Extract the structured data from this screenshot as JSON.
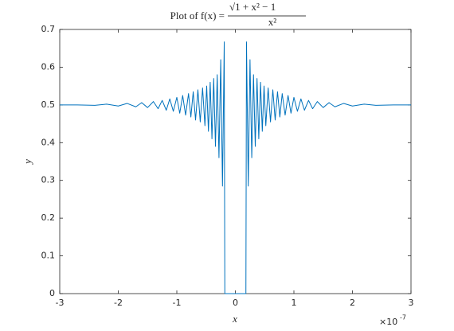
{
  "chart_data": {
    "type": "line",
    "title_prefix": "Plot of f(x) =",
    "title_numerator": "√1 + x² − 1",
    "title_denominator": "x²",
    "xlabel": "x",
    "ylabel": "y",
    "x_multiplier_base": "×10",
    "x_multiplier_exponent": "-7",
    "xlim": [
      -3,
      3
    ],
    "xticks": [
      -3,
      -2,
      -1,
      0,
      1,
      2,
      3
    ],
    "ylim": [
      0,
      0.7
    ],
    "yticks": [
      0,
      0.1,
      0.2,
      0.3,
      0.4,
      0.5,
      0.6,
      0.7
    ],
    "grid": false,
    "series": [
      {
        "color": "#0072BD",
        "x": [
          -3.0,
          -2.7,
          -2.4,
          -2.2,
          -2.0,
          -1.85,
          -1.7,
          -1.6,
          -1.5,
          -1.4,
          -1.32,
          -1.25,
          -1.18,
          -1.12,
          -1.06,
          -1.0,
          -0.95,
          -0.9,
          -0.85,
          -0.8,
          -0.76,
          -0.72,
          -0.68,
          -0.64,
          -0.6,
          -0.56,
          -0.52,
          -0.49,
          -0.46,
          -0.43,
          -0.4,
          -0.37,
          -0.34,
          -0.31,
          -0.28,
          -0.25,
          -0.22,
          -0.19,
          -0.18,
          0.18,
          0.19,
          0.22,
          0.25,
          0.28,
          0.31,
          0.34,
          0.37,
          0.4,
          0.43,
          0.46,
          0.49,
          0.52,
          0.56,
          0.6,
          0.64,
          0.68,
          0.72,
          0.76,
          0.8,
          0.85,
          0.9,
          0.95,
          1.0,
          1.06,
          1.12,
          1.18,
          1.25,
          1.32,
          1.4,
          1.5,
          1.6,
          1.7,
          1.85,
          2.0,
          2.2,
          2.4,
          2.7,
          3.0
        ],
        "values": [
          0.5,
          0.5,
          0.499,
          0.502,
          0.497,
          0.504,
          0.495,
          0.506,
          0.493,
          0.509,
          0.49,
          0.512,
          0.486,
          0.516,
          0.483,
          0.52,
          0.478,
          0.525,
          0.473,
          0.53,
          0.468,
          0.535,
          0.46,
          0.54,
          0.455,
          0.545,
          0.445,
          0.55,
          0.43,
          0.56,
          0.41,
          0.57,
          0.39,
          0.58,
          0.36,
          0.62,
          0.285,
          0.667,
          0,
          0,
          0.667,
          0.285,
          0.62,
          0.36,
          0.58,
          0.39,
          0.57,
          0.41,
          0.56,
          0.43,
          0.55,
          0.445,
          0.545,
          0.455,
          0.54,
          0.46,
          0.535,
          0.468,
          0.53,
          0.473,
          0.525,
          0.478,
          0.52,
          0.483,
          0.516,
          0.486,
          0.512,
          0.49,
          0.509,
          0.493,
          0.506,
          0.495,
          0.504,
          0.497,
          0.502,
          0.499,
          0.5,
          0.5
        ]
      }
    ]
  }
}
